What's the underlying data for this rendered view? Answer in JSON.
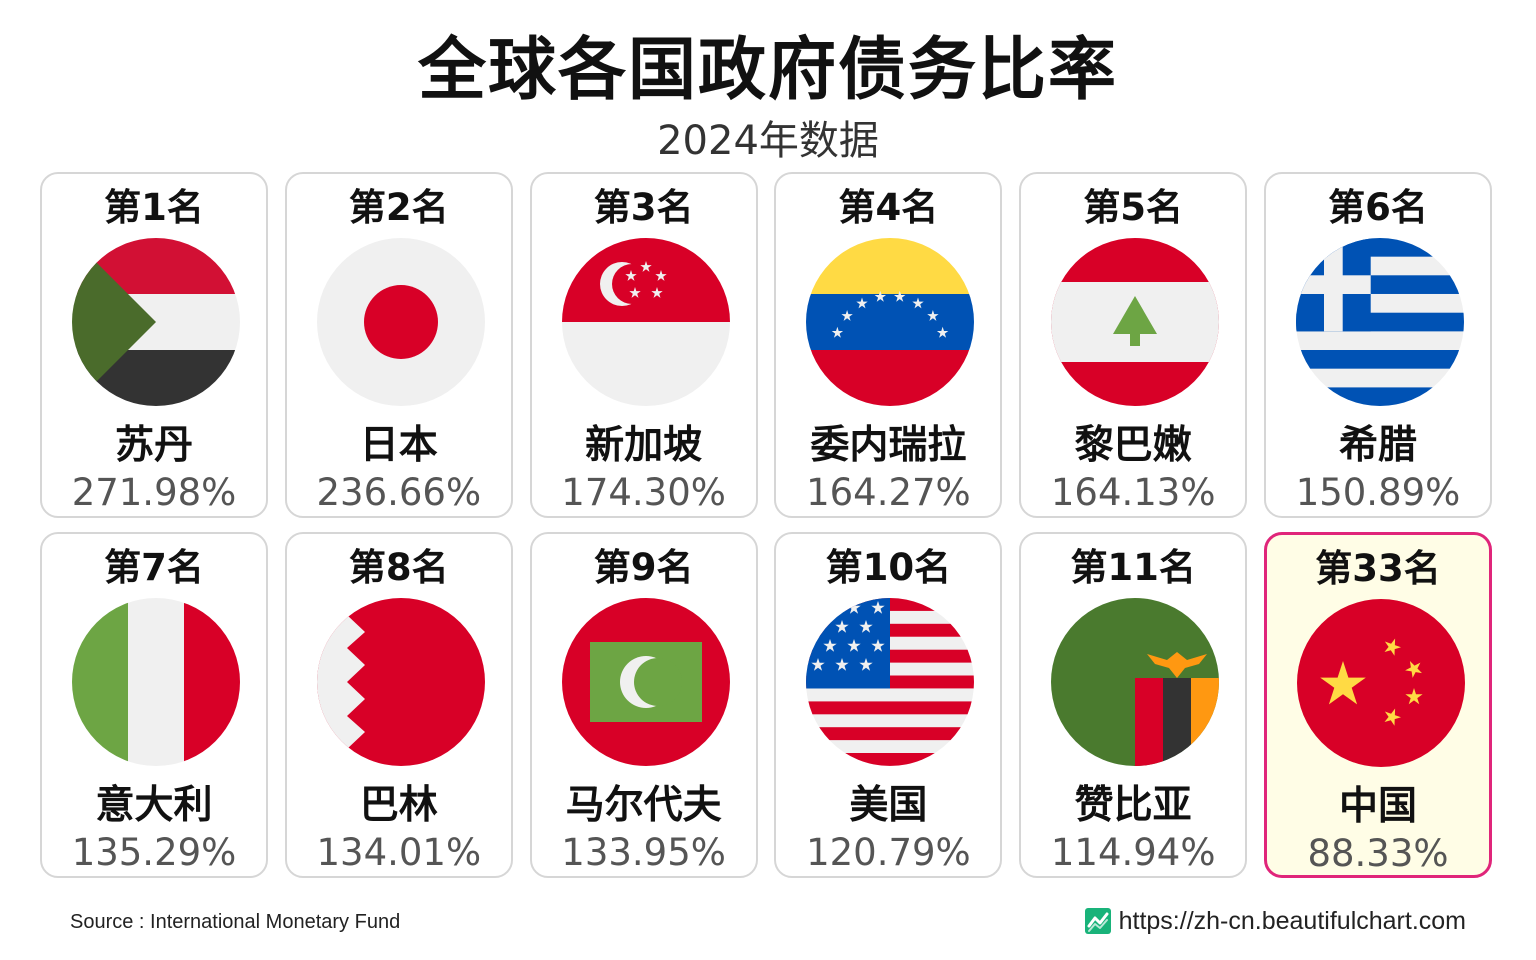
{
  "title": "全球各国政府债务比率",
  "subtitle": "2024年数据",
  "source": "Source : International Monetary Fund",
  "website": "https://zh-cn.beautifulchart.com",
  "accent_color": "#e0257a",
  "chart_data": {
    "type": "table",
    "unit": "%",
    "entries": [
      {
        "rank": "第1名",
        "country": "苏丹",
        "value": 271.98,
        "label": "271.98%",
        "flag": "sudan-flag",
        "highlight": false
      },
      {
        "rank": "第2名",
        "country": "日本",
        "value": 236.66,
        "label": "236.66%",
        "flag": "japan-flag",
        "highlight": false
      },
      {
        "rank": "第3名",
        "country": "新加坡",
        "value": 174.3,
        "label": "174.30%",
        "flag": "singapore-flag",
        "highlight": false
      },
      {
        "rank": "第4名",
        "country": "委内瑞拉",
        "value": 164.27,
        "label": "164.27%",
        "flag": "venezuela-flag",
        "highlight": false
      },
      {
        "rank": "第5名",
        "country": "黎巴嫩",
        "value": 164.13,
        "label": "164.13%",
        "flag": "lebanon-flag",
        "highlight": false
      },
      {
        "rank": "第6名",
        "country": "希腊",
        "value": 150.89,
        "label": "150.89%",
        "flag": "greece-flag",
        "highlight": false
      },
      {
        "rank": "第7名",
        "country": "意大利",
        "value": 135.29,
        "label": "135.29%",
        "flag": "italy-flag",
        "highlight": false
      },
      {
        "rank": "第8名",
        "country": "巴林",
        "value": 134.01,
        "label": "134.01%",
        "flag": "bahrain-flag",
        "highlight": false
      },
      {
        "rank": "第9名",
        "country": "马尔代夫",
        "value": 133.95,
        "label": "133.95%",
        "flag": "maldives-flag",
        "highlight": false
      },
      {
        "rank": "第10名",
        "country": "美国",
        "value": 120.79,
        "label": "120.79%",
        "flag": "usa-flag",
        "highlight": false
      },
      {
        "rank": "第11名",
        "country": "赞比亚",
        "value": 114.94,
        "label": "114.94%",
        "flag": "zambia-flag",
        "highlight": false
      },
      {
        "rank": "第33名",
        "country": "中国",
        "value": 88.33,
        "label": "88.33%",
        "flag": "china-flag",
        "highlight": true
      }
    ]
  }
}
